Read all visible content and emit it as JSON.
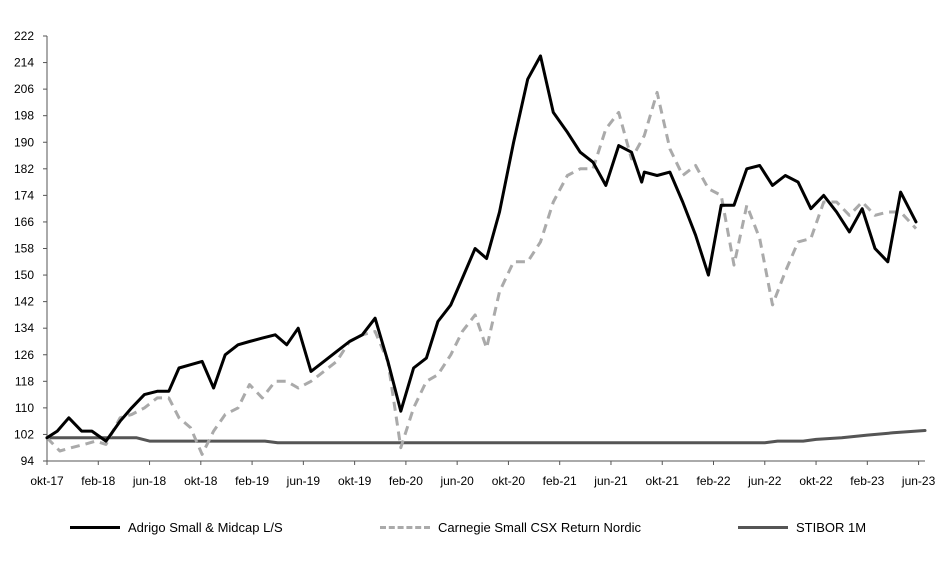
{
  "chart_data": {
    "type": "line",
    "title": "",
    "xlabel": "",
    "ylabel": "",
    "ylim": [
      94,
      222
    ],
    "yticks": [
      94,
      102,
      110,
      118,
      126,
      134,
      142,
      150,
      158,
      166,
      174,
      182,
      190,
      198,
      206,
      214,
      222
    ],
    "xlim": [
      0,
      68.5
    ],
    "xticks": [
      {
        "i": 0,
        "label": "okt-17"
      },
      {
        "i": 4,
        "label": "feb-18"
      },
      {
        "i": 8,
        "label": "jun-18"
      },
      {
        "i": 12,
        "label": "okt-18"
      },
      {
        "i": 16,
        "label": "feb-19"
      },
      {
        "i": 20,
        "label": "jun-19"
      },
      {
        "i": 24,
        "label": "okt-19"
      },
      {
        "i": 28,
        "label": "feb-20"
      },
      {
        "i": 32,
        "label": "jun-20"
      },
      {
        "i": 36,
        "label": "okt-20"
      },
      {
        "i": 40,
        "label": "feb-21"
      },
      {
        "i": 44,
        "label": "jun-21"
      },
      {
        "i": 48,
        "label": "okt-21"
      },
      {
        "i": 52,
        "label": "feb-22"
      },
      {
        "i": 56,
        "label": "jun-22"
      },
      {
        "i": 60,
        "label": "okt-22"
      },
      {
        "i": 64,
        "label": "feb-23"
      },
      {
        "i": 68,
        "label": "jun-23"
      }
    ],
    "grid": false,
    "legend_position": "bottom",
    "series": [
      {
        "name": "Adrigo Small & Midcap L/S",
        "color": "#000000",
        "style": "solid",
        "points": [
          [
            0,
            101
          ],
          [
            0.8,
            103
          ],
          [
            1.7,
            107
          ],
          [
            2.7,
            103
          ],
          [
            3.5,
            103
          ],
          [
            4.6,
            100
          ],
          [
            5.7,
            106
          ],
          [
            6.6,
            110
          ],
          [
            7.6,
            114
          ],
          [
            8.6,
            115
          ],
          [
            9.5,
            115
          ],
          [
            10.3,
            122
          ],
          [
            11.2,
            123
          ],
          [
            12.1,
            124
          ],
          [
            13.0,
            116
          ],
          [
            13.9,
            126
          ],
          [
            14.9,
            129
          ],
          [
            15.8,
            130
          ],
          [
            16.8,
            131
          ],
          [
            17.8,
            132
          ],
          [
            18.7,
            129
          ],
          [
            19.6,
            134
          ],
          [
            20.6,
            121
          ],
          [
            21.6,
            124
          ],
          [
            22.6,
            127
          ],
          [
            23.6,
            130
          ],
          [
            24.6,
            132
          ],
          [
            25.6,
            137
          ],
          [
            26.6,
            124
          ],
          [
            27.6,
            109
          ],
          [
            28.6,
            122
          ],
          [
            29.6,
            125
          ],
          [
            30.5,
            136
          ],
          [
            31.5,
            141
          ],
          [
            32.4,
            149
          ],
          [
            33.4,
            158
          ],
          [
            34.3,
            155
          ],
          [
            35.3,
            169
          ],
          [
            36.4,
            190
          ],
          [
            37.5,
            209
          ],
          [
            38.5,
            216
          ],
          [
            39.5,
            199
          ],
          [
            40.6,
            193
          ],
          [
            41.6,
            187
          ],
          [
            42.6,
            184
          ],
          [
            43.6,
            177
          ],
          [
            44.6,
            189
          ],
          [
            45.6,
            187
          ],
          [
            46.4,
            178
          ],
          [
            46.6,
            181
          ],
          [
            47.6,
            180
          ],
          [
            48.6,
            181
          ],
          [
            49.6,
            172
          ],
          [
            50.6,
            162
          ],
          [
            51.6,
            150
          ],
          [
            52.6,
            171
          ],
          [
            53.6,
            171
          ],
          [
            54.6,
            182
          ],
          [
            55.6,
            183
          ],
          [
            56.6,
            177
          ],
          [
            57.6,
            180
          ],
          [
            58.6,
            178
          ],
          [
            59.6,
            170
          ],
          [
            60.6,
            174
          ],
          [
            61.6,
            169
          ],
          [
            62.6,
            163
          ],
          [
            63.6,
            170
          ],
          [
            64.6,
            158
          ],
          [
            65.6,
            154
          ],
          [
            66.6,
            175
          ],
          [
            67.8,
            166
          ]
        ]
      },
      {
        "name": "Carnegie Small CSX Return Nordic",
        "color": "#aaaaaa",
        "style": "dashed",
        "points": [
          [
            0,
            101
          ],
          [
            1.0,
            97
          ],
          [
            1.9,
            98
          ],
          [
            2.9,
            99
          ],
          [
            3.8,
            100
          ],
          [
            4.6,
            99
          ],
          [
            5.7,
            107
          ],
          [
            6.6,
            108
          ],
          [
            7.6,
            110
          ],
          [
            8.6,
            113
          ],
          [
            9.5,
            113
          ],
          [
            10.3,
            107
          ],
          [
            11.2,
            104
          ],
          [
            12.1,
            96
          ],
          [
            13.0,
            103
          ],
          [
            13.9,
            108
          ],
          [
            14.9,
            110
          ],
          [
            15.8,
            117
          ],
          [
            16.8,
            113
          ],
          [
            17.8,
            118
          ],
          [
            18.7,
            118
          ],
          [
            19.6,
            116
          ],
          [
            20.6,
            118
          ],
          [
            21.6,
            121
          ],
          [
            22.6,
            124
          ],
          [
            23.6,
            130
          ],
          [
            24.6,
            132
          ],
          [
            25.6,
            133
          ],
          [
            26.6,
            124
          ],
          [
            27.6,
            98
          ],
          [
            28.6,
            110
          ],
          [
            29.6,
            118
          ],
          [
            30.5,
            120
          ],
          [
            31.5,
            126
          ],
          [
            32.4,
            133
          ],
          [
            33.4,
            138
          ],
          [
            34.3,
            128
          ],
          [
            35.3,
            145
          ],
          [
            36.4,
            154
          ],
          [
            37.5,
            154
          ],
          [
            38.5,
            160
          ],
          [
            39.5,
            172
          ],
          [
            40.6,
            180
          ],
          [
            41.6,
            182
          ],
          [
            42.6,
            182
          ],
          [
            43.6,
            194
          ],
          [
            44.6,
            199
          ],
          [
            45.6,
            185
          ],
          [
            46.6,
            192
          ],
          [
            47.6,
            205
          ],
          [
            48.6,
            188
          ],
          [
            49.6,
            180
          ],
          [
            50.6,
            183
          ],
          [
            51.6,
            176
          ],
          [
            52.6,
            174
          ],
          [
            53.6,
            153
          ],
          [
            54.6,
            171
          ],
          [
            55.6,
            161
          ],
          [
            56.6,
            141
          ],
          [
            57.6,
            151
          ],
          [
            58.6,
            160
          ],
          [
            59.6,
            161
          ],
          [
            60.6,
            172
          ],
          [
            61.6,
            172
          ],
          [
            62.6,
            168
          ],
          [
            63.6,
            172
          ],
          [
            64.6,
            168
          ],
          [
            65.6,
            169
          ],
          [
            66.6,
            169
          ],
          [
            67.8,
            164
          ]
        ]
      },
      {
        "name": "STIBOR 1M",
        "color": "#555555",
        "style": "solid",
        "points": [
          [
            0,
            101
          ],
          [
            7,
            101
          ],
          [
            8,
            100
          ],
          [
            17,
            100
          ],
          [
            18,
            99.5
          ],
          [
            56,
            99.5
          ],
          [
            57,
            100
          ],
          [
            59,
            100
          ],
          [
            60,
            100.5
          ],
          [
            62,
            101
          ],
          [
            64,
            101.8
          ],
          [
            66,
            102.5
          ],
          [
            68.5,
            103.2
          ]
        ]
      }
    ]
  }
}
